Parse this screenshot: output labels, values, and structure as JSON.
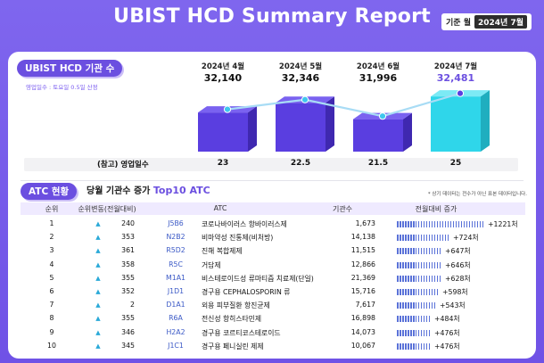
{
  "title": "UBIST HCD Summary Report",
  "badge": {
    "label": "기준 월",
    "value": "2024년 7월"
  },
  "section1": {
    "label": "UBIST HCD 기관 수",
    "note": "영업일수 : 토요일 0.5일 산정"
  },
  "months": [
    {
      "month": "2024년 4월",
      "count": "32,140",
      "count_value": 32140,
      "workdays": "23"
    },
    {
      "month": "2024년 5월",
      "count": "32,346",
      "count_value": 32346,
      "workdays": "22.5"
    },
    {
      "month": "2024년 6월",
      "count": "31,996",
      "count_value": 31996,
      "workdays": "21.5"
    },
    {
      "month": "2024년 7월",
      "count": "32,481",
      "count_value": 32481,
      "workdays": "25"
    }
  ],
  "workdays_label": "(참고) 영업일수",
  "colors": {
    "bar": "#5a3ee0",
    "bar_highlight": "#2fd6ea",
    "accent": "#6b4fe0",
    "line": "#a8dcf5",
    "diff_bar": "#5a72d8"
  },
  "section2": {
    "label": "ATC 현황",
    "subtitle_prefix": "당월 기관수 증가",
    "subtitle_accent": "Top10 ATC",
    "note": "* 상기 데이터는 전수가 아닌 표본 데이터입니다."
  },
  "table": {
    "headers": {
      "rank": "순위",
      "prev": "순위변동(전월대비)",
      "atc": "ATC",
      "count": "기관수",
      "diff": "전월대비 증가"
    },
    "rows": [
      {
        "rank": "1",
        "prev": "240",
        "code": "J5B6",
        "name": "코로나바이러스 항바이러스제",
        "count": "1,673",
        "diff": "+1221처",
        "diff_value": 1221
      },
      {
        "rank": "2",
        "prev": "353",
        "code": "N2B2",
        "name": "비마약성 진통제(비처방)",
        "count": "14,138",
        "diff": "+724처",
        "diff_value": 724
      },
      {
        "rank": "3",
        "prev": "361",
        "code": "R5D2",
        "name": "진해 복합제제",
        "count": "11,515",
        "diff": "+647처",
        "diff_value": 647
      },
      {
        "rank": "4",
        "prev": "358",
        "code": "R5C",
        "name": "거담제",
        "count": "12,866",
        "diff": "+646처",
        "diff_value": 646
      },
      {
        "rank": "5",
        "prev": "355",
        "code": "M1A1",
        "name": "비스테로이드성 류마티즘 치료제(단일)",
        "count": "21,369",
        "diff": "+628처",
        "diff_value": 628
      },
      {
        "rank": "6",
        "prev": "352",
        "code": "J1D1",
        "name": "경구용 CEPHALOSPORIN 류",
        "count": "15,716",
        "diff": "+598처",
        "diff_value": 598
      },
      {
        "rank": "7",
        "prev": "2",
        "code": "D1A1",
        "name": "외용 피부질환 항진균제",
        "count": "7,617",
        "diff": "+543처",
        "diff_value": 543
      },
      {
        "rank": "8",
        "prev": "355",
        "code": "R6A",
        "name": "전신성 항히스타민제",
        "count": "16,898",
        "diff": "+484처",
        "diff_value": 484
      },
      {
        "rank": "9",
        "prev": "346",
        "code": "H2A2",
        "name": "경구용 코르티코스테로이드",
        "count": "14,073",
        "diff": "+476처",
        "diff_value": 476
      },
      {
        "rank": "10",
        "prev": "345",
        "code": "J1C1",
        "name": "경구용 페니실린 제제",
        "count": "10,067",
        "diff": "+476처",
        "diff_value": 476
      }
    ]
  }
}
